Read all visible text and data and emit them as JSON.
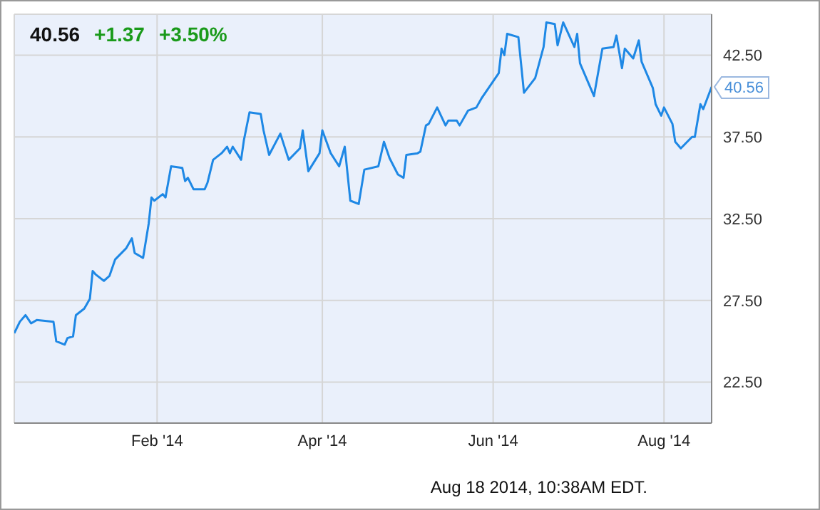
{
  "chart_data": {
    "type": "line",
    "annotations": [
      "40.56",
      "+1.37",
      "+3.50%",
      {
        "text": "40.56",
        "x": "2014-08-18",
        "y": 40.56
      },
      "Aug 18 2014, 10:38AM EDT."
    ],
    "x": [
      "2013-12-12",
      "2013-12-14",
      "2013-12-16",
      "2013-12-18",
      "2013-12-20",
      "2013-12-26",
      "2013-12-27",
      "2013-12-30",
      "2013-12-31",
      "2014-01-02",
      "2014-01-03",
      "2014-01-06",
      "2014-01-08",
      "2014-01-09",
      "2014-01-10",
      "2014-01-13",
      "2014-01-15",
      "2014-01-17",
      "2014-01-21",
      "2014-01-23",
      "2014-01-24",
      "2014-01-27",
      "2014-01-29",
      "2014-01-30",
      "2014-01-31",
      "2014-02-03",
      "2014-02-04",
      "2014-02-06",
      "2014-02-10",
      "2014-02-11",
      "2014-02-12",
      "2014-02-14",
      "2014-02-18",
      "2014-02-19",
      "2014-02-21",
      "2014-02-24",
      "2014-02-26",
      "2014-02-27",
      "2014-02-28",
      "2014-03-03",
      "2014-03-04",
      "2014-03-06",
      "2014-03-10",
      "2014-03-11",
      "2014-03-13",
      "2014-03-17",
      "2014-03-20",
      "2014-03-24",
      "2014-03-25",
      "2014-03-27",
      "2014-03-31",
      "2014-04-01",
      "2014-04-04",
      "2014-04-07",
      "2014-04-09",
      "2014-04-11",
      "2014-04-14",
      "2014-04-16",
      "2014-04-21",
      "2014-04-23",
      "2014-04-25",
      "2014-04-28",
      "2014-04-30",
      "2014-05-01",
      "2014-05-05",
      "2014-05-06",
      "2014-05-08",
      "2014-05-09",
      "2014-05-12",
      "2014-05-15",
      "2014-05-16",
      "2014-05-19",
      "2014-05-20",
      "2014-05-23",
      "2014-05-26",
      "2014-05-28",
      "2014-06-03",
      "2014-06-04",
      "2014-06-05",
      "2014-06-06",
      "2014-06-10",
      "2014-06-12",
      "2014-06-16",
      "2014-06-19",
      "2014-06-20",
      "2014-06-23",
      "2014-06-24",
      "2014-06-26",
      "2014-06-30",
      "2014-07-01",
      "2014-07-02",
      "2014-07-07",
      "2014-07-10",
      "2014-07-14",
      "2014-07-15",
      "2014-07-17",
      "2014-07-18",
      "2014-07-21",
      "2014-07-23",
      "2014-07-24",
      "2014-07-28",
      "2014-07-29",
      "2014-07-31",
      "2014-08-01",
      "2014-08-04",
      "2014-08-05",
      "2014-08-07",
      "2014-08-11",
      "2014-08-12",
      "2014-08-14",
      "2014-08-15",
      "2014-08-18"
    ],
    "series": [
      {
        "color": "#1e88e5",
        "values": [
          25.5,
          26.2,
          26.6,
          26.1,
          26.3,
          26.2,
          25.0,
          24.8,
          25.2,
          25.3,
          26.6,
          27.0,
          27.6,
          29.3,
          29.1,
          28.7,
          29.0,
          30.0,
          30.7,
          31.3,
          30.4,
          30.1,
          32.2,
          33.8,
          33.6,
          34.0,
          33.8,
          35.7,
          35.6,
          34.8,
          35.0,
          34.3,
          34.3,
          34.7,
          36.1,
          36.5,
          36.9,
          36.5,
          36.9,
          36.1,
          37.3,
          39.0,
          38.9,
          37.9,
          36.4,
          37.7,
          36.1,
          36.8,
          37.9,
          35.4,
          36.5,
          37.9,
          36.5,
          35.7,
          36.9,
          33.6,
          33.4,
          35.5,
          35.7,
          37.2,
          36.2,
          35.2,
          35.0,
          36.4,
          36.5,
          36.6,
          38.2,
          38.3,
          39.3,
          38.2,
          38.5,
          38.5,
          38.2,
          39.1,
          39.3,
          39.9,
          41.4,
          42.9,
          42.5,
          43.8,
          43.6,
          40.2,
          41.1,
          43.0,
          44.5,
          44.4,
          43.1,
          44.5,
          43.0,
          43.8,
          42.0,
          40.0,
          42.9,
          43.0,
          43.7,
          41.7,
          42.9,
          42.3,
          43.4,
          42.1,
          40.5,
          39.5,
          38.8,
          39.3,
          38.3,
          37.2,
          36.8,
          37.5,
          37.5,
          39.5,
          39.2,
          40.56
        ]
      }
    ],
    "xlim": [
      "2013-12-12",
      "2014-08-18"
    ],
    "xticks": [
      {
        "value": "2014-02-01",
        "label": "Feb '14"
      },
      {
        "value": "2014-04-01",
        "label": "Apr '14"
      },
      {
        "value": "2014-06-01",
        "label": "Jun '14"
      },
      {
        "value": "2014-08-01",
        "label": "Aug '14"
      }
    ],
    "ylim": [
      20,
      45
    ],
    "yticks": [
      {
        "value": 22.5,
        "label": "22.50"
      },
      {
        "value": 27.5,
        "label": "27.50"
      },
      {
        "value": 32.5,
        "label": "32.50"
      },
      {
        "value": 37.5,
        "label": "37.50"
      },
      {
        "value": 42.5,
        "label": "42.50"
      }
    ],
    "grid": true,
    "legend": false,
    "marker": "none",
    "line_style": "solid"
  }
}
